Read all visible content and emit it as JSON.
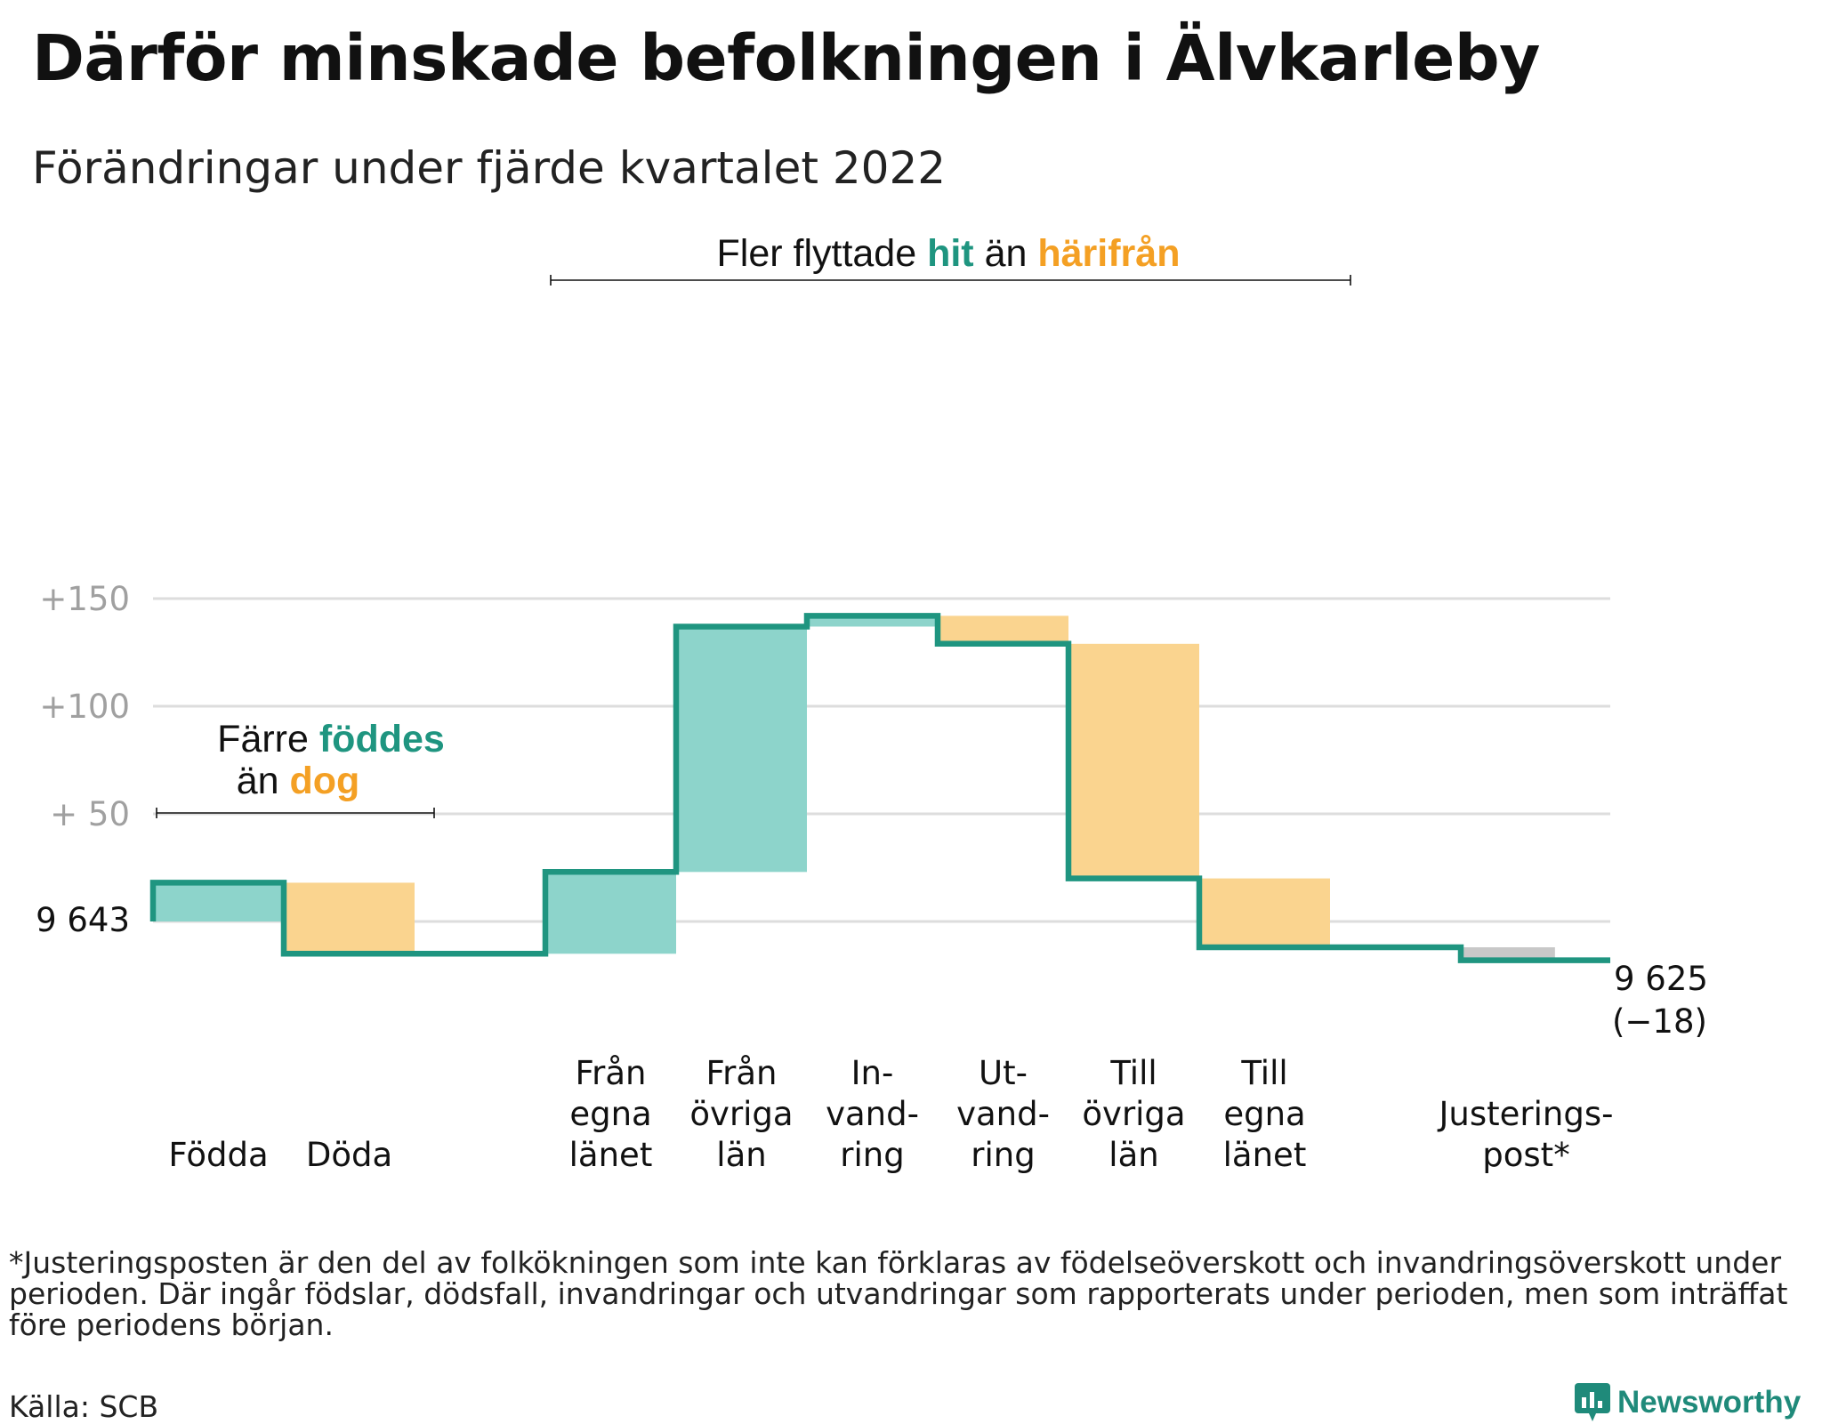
{
  "title": "Därför minskade befolkningen i Älvkarleby",
  "subtitle": "Förändringar under fjärde kvartalet 2022",
  "footnote": "*Justeringsposten är den del av folkökningen som inte kan förklaras av födelseöverskott och invandringsöverskott under perioden. Där ingår födslar, dödsfall, invandringar och utvandringar som rapporterats under perioden, men som inträffat före periodens början.",
  "source": "Källa: SCB",
  "brand": "Newsworthy",
  "colors": {
    "increase": "#8dd4cb",
    "decrease": "#fad48f",
    "adjustment": "#c8c8c8",
    "line": "#1f9580",
    "teal_text": "#1f9580",
    "orange_text": "#f4a024",
    "grid": "#dddddd",
    "tick_text": "#a0a0a0"
  },
  "annotations": {
    "births_deaths": {
      "line1_plain": "Färre ",
      "line1_highlight": "föddes",
      "line2_plain": "än ",
      "line2_highlight": "dog"
    },
    "migration": {
      "plain1": "Fler flyttade ",
      "highlight1": "hit",
      "plain2": " än ",
      "highlight2": "härifrån"
    }
  },
  "chart_data": {
    "type": "waterfall",
    "title": "Därför minskade befolkningen i Älvkarleby",
    "subtitle": "Förändringar under fjärde kvartalet 2022",
    "start_value": 9643,
    "start_label": "9 643",
    "end_value": 9625,
    "end_label": "9 625",
    "end_change_label": "(−18)",
    "y_ticks": [
      {
        "value": 150,
        "label": "+150"
      },
      {
        "value": 100,
        "label": "+100"
      },
      {
        "value": 50,
        "label": "+ 50"
      }
    ],
    "ylim": [
      -30,
      155
    ],
    "grid": true,
    "steps": [
      {
        "label_lines": [
          "Födda"
        ],
        "change": 18,
        "kind": "increase"
      },
      {
        "label_lines": [
          "Döda"
        ],
        "change": -33,
        "kind": "decrease"
      },
      {
        "label_lines": [],
        "change": 0,
        "kind": "gap"
      },
      {
        "label_lines": [
          "Från",
          "egna",
          "länet"
        ],
        "change": 38,
        "kind": "increase"
      },
      {
        "label_lines": [
          "Från",
          "övriga",
          "län"
        ],
        "change": 114,
        "kind": "increase"
      },
      {
        "label_lines": [
          "In-",
          "vand-",
          "ring"
        ],
        "change": 5,
        "kind": "increase"
      },
      {
        "label_lines": [
          "Ut-",
          "vand-",
          "ring"
        ],
        "change": -13,
        "kind": "decrease"
      },
      {
        "label_lines": [
          "Till",
          "övriga",
          "län"
        ],
        "change": -109,
        "kind": "decrease"
      },
      {
        "label_lines": [
          "Till",
          "egna",
          "länet"
        ],
        "change": -32,
        "kind": "decrease"
      },
      {
        "label_lines": [],
        "change": 0,
        "kind": "gap"
      },
      {
        "label_lines": [
          "Justerings-",
          "post*"
        ],
        "change": -6,
        "kind": "adjustment"
      }
    ]
  }
}
